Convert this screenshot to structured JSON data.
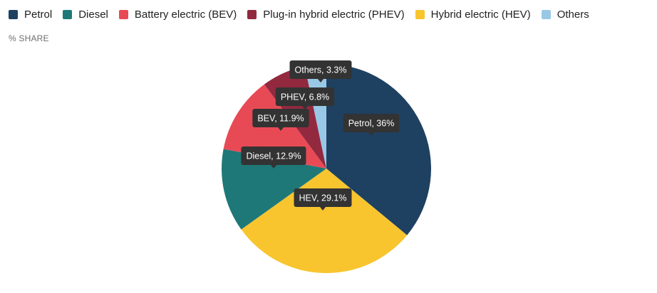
{
  "colors": {
    "petrol": "#1e4161",
    "diesel": "#1e7878",
    "bev": "#e84a55",
    "phev": "#92293f",
    "hev": "#f8c52f",
    "others": "#99c8e6",
    "tooltip_bg": "#333333"
  },
  "legend": [
    {
      "label": "Petrol",
      "color": "#1e4161"
    },
    {
      "label": "Diesel",
      "color": "#1e7878"
    },
    {
      "label": "Battery electric (BEV)",
      "color": "#e84a55"
    },
    {
      "label": "Plug-in hybrid electric (PHEV)",
      "color": "#92293f"
    },
    {
      "label": "Hybrid electric (HEV)",
      "color": "#f8c52f"
    },
    {
      "label": "Others",
      "color": "#99c8e6"
    }
  ],
  "subtitle": "% SHARE",
  "chart_data": {
    "type": "pie",
    "title": "",
    "unit": "% share",
    "slices": [
      {
        "name": "Petrol",
        "value": 36,
        "label": "Petrol, 36%",
        "color": "#1e4161"
      },
      {
        "name": "HEV",
        "value": 29.1,
        "label": "HEV, 29.1%",
        "color": "#f8c52f"
      },
      {
        "name": "Diesel",
        "value": 12.9,
        "label": "Diesel, 12.9%",
        "color": "#1e7878"
      },
      {
        "name": "BEV",
        "value": 11.9,
        "label": "BEV, 11.9%",
        "color": "#e84a55"
      },
      {
        "name": "PHEV",
        "value": 6.8,
        "label": "PHEV, 6.8%",
        "color": "#92293f"
      },
      {
        "name": "Others",
        "value": 3.3,
        "label": "Others, 3.3%",
        "color": "#99c8e6"
      }
    ],
    "start": "12 o'clock",
    "direction": "clockwise",
    "legend_position": "top-left"
  }
}
